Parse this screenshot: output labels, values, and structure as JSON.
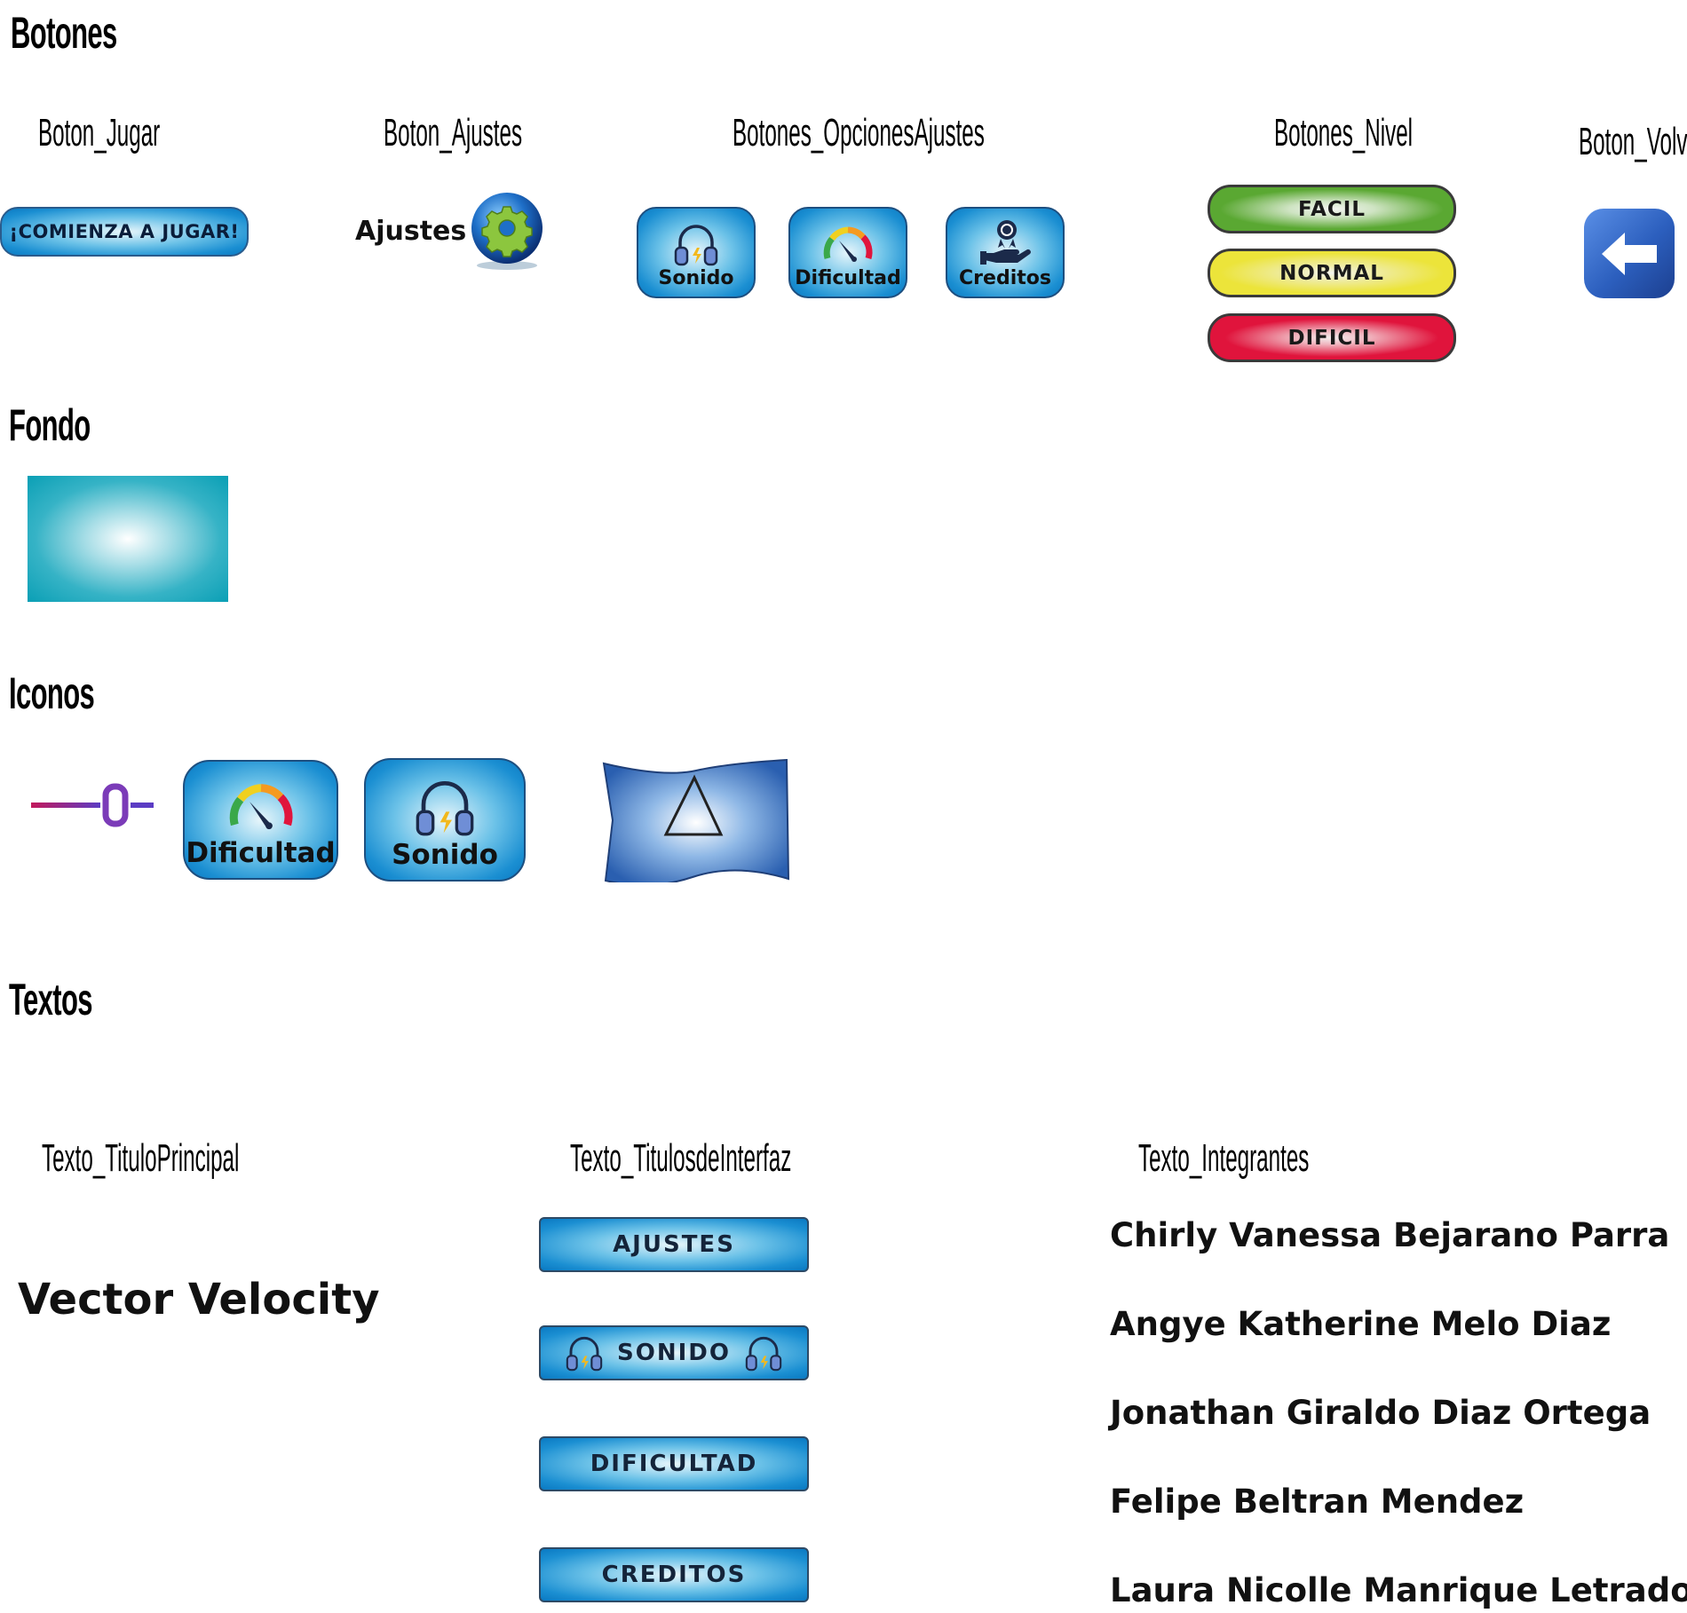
{
  "sections": {
    "botones": "Botones",
    "fondo": "Fondo",
    "iconos": "Iconos",
    "textos": "Textos"
  },
  "subheads": {
    "jugar": "Boton_Jugar",
    "ajustes": "Boton_Ajustes",
    "opciones": "Botones_OpcionesAjustes",
    "nivel": "Botones_Nivel",
    "volver": "Boton_Volver",
    "titulo_principal": "Texto_TituloPrincipal",
    "titulos_interfaz": "Texto_TitulosdeInterfaz",
    "integrantes": "Texto_Integrantes"
  },
  "buttons": {
    "jugar": "¡COMIENZA A JUGAR!",
    "ajustes": "Ajustes",
    "opciones": [
      "Sonido",
      "Dificultad",
      "Creditos"
    ],
    "niveles": [
      "FACIL",
      "NORMAL",
      "DIFICIL"
    ]
  },
  "icons": {
    "dificultad": "Dificultad",
    "sonido": "Sonido"
  },
  "texts": {
    "titulo_principal": "Vector Velocity",
    "titulos_interfaz": [
      "AJUSTES",
      "SONIDO",
      "DIFICULTAD",
      "CREDITOS"
    ],
    "integrantes": [
      "Chirly Vanessa Bejarano Parra",
      "Angye Katherine Melo Diaz",
      "Jonathan Giraldo Diaz Ortega",
      "Felipe Beltran Mendez",
      "Laura Nicolle Manrique Letrado"
    ]
  },
  "colors": {
    "facil": "#5aa832",
    "normal": "#ece43a",
    "dificil": "#e0143c",
    "blue": "#1b8fd2",
    "fondo": "#0a9fb5"
  }
}
